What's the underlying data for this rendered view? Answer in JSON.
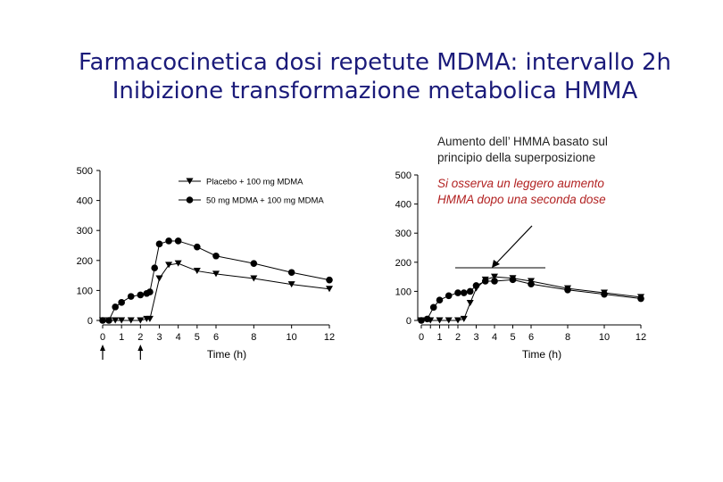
{
  "slide": {
    "title_line1": "Farmacocinetica dosi repetute MDMA: intervallo 2h",
    "title_line2": "Inibizione transformazione metabolica HMMA",
    "note1_line1": "Aumento dell’ HMMA basato sul",
    "note1_line2": "principio della superposizione",
    "note2_line1": "Si osserva un leggero aumento",
    "note2_line2": "HMMA  dopo una seconda dose"
  },
  "colors": {
    "title": "#1b1b7a",
    "note_red": "#b22222",
    "data": "#000000"
  },
  "chart_data": [
    {
      "type": "line",
      "xlabel": "Time (h)",
      "ylabel": "",
      "xlim": [
        0,
        12
      ],
      "ylim": [
        0,
        500
      ],
      "xticks": [
        0,
        1,
        2,
        3,
        4,
        5,
        6,
        8,
        10,
        12
      ],
      "yticks": [
        0,
        100,
        200,
        300,
        400,
        500
      ],
      "legend_position": "top-right",
      "dose_arrows": [
        0,
        2
      ],
      "series": [
        {
          "name": "Placebo + 100 mg MDMA",
          "marker": "triangle",
          "x": [
            0,
            0.33,
            0.67,
            1,
            1.5,
            2,
            2.33,
            2.5,
            3,
            3.5,
            4,
            5,
            6,
            8,
            10,
            12
          ],
          "y": [
            0,
            0,
            0,
            0,
            0,
            0,
            5,
            5,
            140,
            185,
            190,
            165,
            155,
            140,
            120,
            105
          ]
        },
        {
          "name": "50 mg MDMA + 100 mg MDMA",
          "marker": "circle",
          "x": [
            0,
            0.33,
            0.67,
            1,
            1.5,
            2,
            2.33,
            2.5,
            2.75,
            3,
            3.5,
            4,
            5,
            6,
            8,
            10,
            12
          ],
          "y": [
            0,
            0,
            45,
            60,
            80,
            85,
            90,
            95,
            175,
            255,
            265,
            265,
            245,
            215,
            190,
            160,
            135
          ]
        }
      ]
    },
    {
      "type": "line",
      "xlabel": "Time (h)",
      "ylabel": "",
      "xlim": [
        0,
        12
      ],
      "ylim": [
        0,
        500
      ],
      "xticks": [
        0,
        0.5,
        1,
        1.5,
        2,
        3,
        4,
        5,
        6,
        8,
        10,
        12
      ],
      "xticklabels": [
        "0",
        "",
        "1",
        "",
        "2",
        "3",
        "4",
        "5",
        "6",
        "8",
        "10",
        "12"
      ],
      "yticks": [
        0,
        100,
        200,
        300,
        400,
        500
      ],
      "series": [
        {
          "name": "",
          "marker": "triangle",
          "x": [
            0,
            0.5,
            1,
            1.5,
            2,
            2.33,
            2.67,
            3,
            3.5,
            4,
            5,
            6,
            8,
            10,
            12
          ],
          "y": [
            0,
            0,
            0,
            0,
            0,
            5,
            60,
            110,
            140,
            150,
            145,
            135,
            110,
            95,
            80
          ]
        },
        {
          "name": "",
          "marker": "circle",
          "x": [
            0,
            0.33,
            0.67,
            1,
            1.5,
            2,
            2.33,
            2.67,
            3,
            3.5,
            4,
            5,
            6,
            8,
            10,
            12
          ],
          "y": [
            0,
            5,
            45,
            70,
            85,
            95,
            95,
            100,
            120,
            135,
            135,
            140,
            125,
            105,
            90,
            75
          ]
        }
      ]
    }
  ]
}
